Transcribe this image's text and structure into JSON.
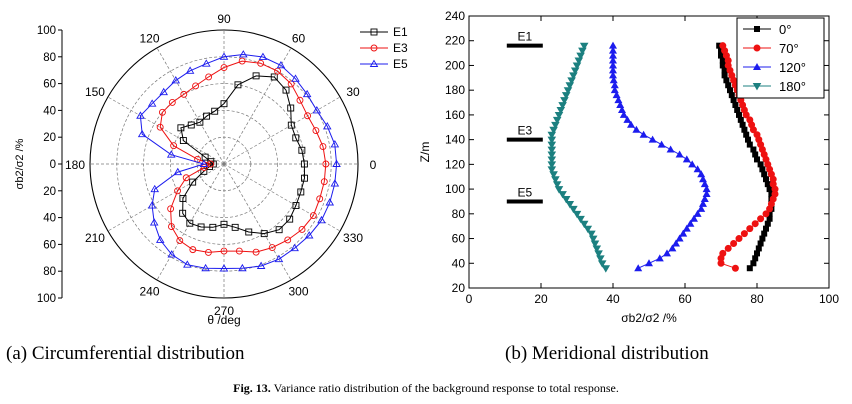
{
  "figure": {
    "caption_label": "Fig. 13.",
    "caption_text": "Variance ratio distribution of the background response to total response.",
    "left_caption": "(a) Circumferential distribution",
    "right_caption": "(b) Meridional distribution"
  },
  "colors": {
    "black": "#000000",
    "red": "#ee1111",
    "blue": "#1c1cee",
    "teal": "#1c8080"
  },
  "chart_data": [
    {
      "type": "scatter",
      "projection": "polar",
      "title": "Circumferential distribution",
      "xlabel": "θ /deg",
      "ylabel": "σb2/σ2 /%",
      "radial_range": [
        0,
        100
      ],
      "radial_ticks": [
        0,
        20,
        40,
        60,
        80,
        100
      ],
      "radial_tick_labels_upper": [
        "100",
        "80",
        "60",
        "40",
        "20",
        "0"
      ],
      "radial_tick_labels_lower": [
        "20",
        "40",
        "60",
        "80",
        "100"
      ],
      "angle_labels": [
        "0",
        "30",
        "60",
        "90",
        "120",
        "150",
        "180",
        "210",
        "240",
        "270",
        "300",
        "330"
      ],
      "legend_position": "top-right",
      "series": [
        {
          "name": "E1",
          "color": "#000000",
          "marker": "square",
          "theta": [
            0,
            10,
            20,
            30,
            40,
            50,
            60,
            70,
            80,
            90,
            100,
            110,
            120,
            130,
            140,
            150,
            160,
            170,
            180,
            190,
            200,
            210,
            220,
            230,
            240,
            250,
            260,
            270,
            280,
            290,
            300,
            310,
            320,
            330,
            340,
            350
          ],
          "r": [
            60,
            59,
            57,
            58,
            65,
            72,
            75,
            70,
            60,
            45,
            40,
            38,
            36,
            38,
            42,
            35,
            15,
            10,
            8,
            11,
            16,
            27,
            40,
            48,
            51,
            50,
            48,
            45,
            48,
            54,
            60,
            64,
            64,
            62,
            61,
            61
          ]
        },
        {
          "name": "E3",
          "color": "#ee1111",
          "marker": "circle",
          "theta": [
            0,
            10,
            20,
            30,
            40,
            50,
            60,
            70,
            80,
            90,
            100,
            110,
            120,
            130,
            140,
            150,
            160,
            170,
            180,
            190,
            200,
            210,
            220,
            230,
            240,
            250,
            260,
            270,
            280,
            290,
            300,
            310,
            320,
            330,
            340,
            350
          ],
          "r": [
            76,
            75,
            73,
            72,
            74,
            78,
            80,
            80,
            78,
            72,
            66,
            62,
            60,
            60,
            60,
            55,
            40,
            20,
            10,
            15,
            30,
            40,
            52,
            61,
            66,
            68,
            67,
            65,
            66,
            70,
            72,
            74,
            76,
            77,
            76,
            76
          ]
        },
        {
          "name": "E5",
          "color": "#1c1cee",
          "marker": "triangle",
          "theta": [
            0,
            10,
            20,
            30,
            40,
            50,
            60,
            70,
            80,
            90,
            100,
            110,
            120,
            130,
            140,
            150,
            160,
            170,
            180,
            190,
            200,
            210,
            220,
            230,
            240,
            250,
            260,
            270,
            280,
            290,
            300,
            310,
            320,
            330,
            340,
            350
          ],
          "r": [
            84,
            84,
            82,
            80,
            81,
            83,
            85,
            85,
            83,
            80,
            76,
            74,
            72,
            70,
            70,
            72,
            65,
            40,
            15,
            35,
            55,
            62,
            68,
            74,
            78,
            80,
            79,
            78,
            79,
            81,
            82,
            82,
            83,
            84,
            84,
            84
          ]
        }
      ]
    },
    {
      "type": "scatter",
      "projection": "cartesian",
      "title": "Meridional distribution",
      "xlabel": "σb2/σ2 /%",
      "ylabel": "Z/m",
      "xlim": [
        0,
        100
      ],
      "ylim": [
        20,
        240
      ],
      "x_ticks": [
        0,
        20,
        40,
        60,
        80,
        100
      ],
      "y_ticks": [
        20,
        40,
        60,
        80,
        100,
        120,
        140,
        160,
        180,
        200,
        220,
        240
      ],
      "legend_position": "top-right",
      "annotations": [
        {
          "text": "E1",
          "z": 216
        },
        {
          "text": "E3",
          "z": 140
        },
        {
          "text": "E5",
          "z": 90
        }
      ],
      "series": [
        {
          "name": "0°",
          "color": "#000000",
          "marker": "square",
          "z": [
            36,
            40,
            44,
            48,
            52,
            56,
            60,
            64,
            68,
            72,
            76,
            80,
            84,
            88,
            92,
            96,
            100,
            104,
            108,
            112,
            116,
            120,
            124,
            128,
            132,
            136,
            140,
            144,
            148,
            152,
            156,
            160,
            164,
            168,
            172,
            176,
            180,
            184,
            188,
            192,
            196,
            200,
            204,
            208,
            212,
            216
          ],
          "x": [
            78,
            79,
            79.5,
            80,
            80.5,
            81,
            81.5,
            82,
            82.5,
            83,
            83.5,
            83.5,
            84,
            84,
            84,
            84,
            83.5,
            83,
            82.5,
            82,
            81.5,
            81,
            80,
            79.5,
            79,
            78,
            77.5,
            77,
            76.5,
            76,
            75.5,
            75,
            74.5,
            74,
            73.5,
            73,
            72.5,
            72,
            71.5,
            71,
            71,
            70.5,
            70.5,
            70,
            70,
            69.5
          ]
        },
        {
          "name": "70°",
          "color": "#ee1111",
          "marker": "circle",
          "z": [
            36,
            40,
            44,
            48,
            52,
            56,
            60,
            64,
            68,
            72,
            76,
            80,
            84,
            88,
            92,
            96,
            100,
            104,
            108,
            112,
            116,
            120,
            124,
            128,
            132,
            136,
            140,
            144,
            148,
            152,
            156,
            160,
            164,
            168,
            172,
            176,
            180,
            184,
            188,
            192,
            196,
            200,
            204,
            208,
            212,
            216
          ],
          "x": [
            74,
            70,
            70,
            70.5,
            72,
            73.5,
            75,
            76.5,
            78,
            79.5,
            81,
            82.5,
            83.5,
            84,
            84.5,
            85,
            85,
            84.5,
            84.5,
            84,
            83.5,
            83,
            82.5,
            82,
            81.5,
            81,
            80.5,
            80,
            79,
            78.5,
            78,
            77,
            76.5,
            76,
            75.5,
            75,
            74.5,
            74,
            73.5,
            73,
            72.5,
            72,
            72,
            71.5,
            71,
            70.5
          ]
        },
        {
          "name": "120°",
          "color": "#1c1cee",
          "marker": "triangle",
          "z": [
            36,
            40,
            44,
            48,
            52,
            56,
            60,
            64,
            68,
            72,
            76,
            80,
            84,
            88,
            92,
            96,
            100,
            104,
            108,
            112,
            116,
            120,
            124,
            128,
            132,
            136,
            140,
            144,
            148,
            152,
            156,
            160,
            164,
            168,
            172,
            176,
            180,
            184,
            188,
            192,
            196,
            200,
            204,
            208,
            212,
            216
          ],
          "x": [
            47,
            50,
            53,
            55,
            56.5,
            57.5,
            58.5,
            59.5,
            60.5,
            61.5,
            62.5,
            63.5,
            64.5,
            65,
            65.5,
            66,
            66,
            65.5,
            65,
            64.5,
            63.5,
            62,
            60.5,
            58.5,
            56,
            53.5,
            51,
            48.5,
            46.5,
            45,
            44,
            43,
            42.5,
            42,
            41.5,
            41,
            40.5,
            40.5,
            40.2,
            40,
            40,
            40,
            40,
            40,
            40,
            40
          ]
        },
        {
          "name": "180°",
          "color": "#1c8080",
          "marker": "triangle-down",
          "z": [
            36,
            40,
            44,
            48,
            52,
            56,
            60,
            64,
            68,
            72,
            76,
            80,
            84,
            88,
            92,
            96,
            100,
            104,
            108,
            112,
            116,
            120,
            124,
            128,
            132,
            136,
            140,
            144,
            148,
            152,
            156,
            160,
            164,
            168,
            172,
            176,
            180,
            184,
            188,
            192,
            196,
            200,
            204,
            208,
            212,
            216
          ],
          "x": [
            38,
            37,
            36.5,
            36,
            35.5,
            35,
            34.5,
            34,
            33,
            32,
            31,
            30,
            29,
            28,
            27,
            26,
            25,
            24.5,
            24,
            23.5,
            23,
            23,
            23,
            23,
            23,
            23,
            23,
            23,
            23.5,
            24,
            24.5,
            25,
            25.5,
            26,
            26.5,
            27,
            27.5,
            28,
            28.5,
            29,
            29.5,
            30,
            30.5,
            31,
            31.5,
            32
          ]
        }
      ]
    }
  ]
}
